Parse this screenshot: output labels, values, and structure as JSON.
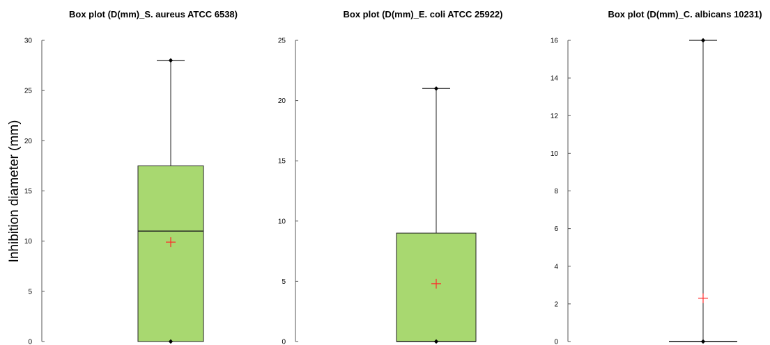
{
  "shared": {
    "ylabel": "Inhibition diameter (mm)",
    "colors": {
      "box_fill": "#a8d870",
      "box_edge": "#222222",
      "mean_marker": "#ff2a2a",
      "extreme_marker": "#000000",
      "axis": "#555555"
    }
  },
  "chart_data": [
    {
      "type": "box",
      "title": "Box plot (D(mm)_S. aureus ATCC 6538)",
      "ylabel": "Inhibition diameter (mm)",
      "ylim": [
        0,
        30
      ],
      "yticks": [
        "0",
        "5",
        "10",
        "15",
        "20",
        "25",
        "30"
      ],
      "stats": {
        "min": 0,
        "q1": 0,
        "median": 11,
        "q3": 17.5,
        "max": 28,
        "mean": 9.9
      }
    },
    {
      "type": "box",
      "title": "Box plot (D(mm)_E. coli ATCC 25922)",
      "ylim": [
        0,
        25
      ],
      "yticks": [
        "0",
        "5",
        "10",
        "15",
        "20",
        "25"
      ],
      "stats": {
        "min": 0,
        "q1": 0,
        "median": 0,
        "q3": 9,
        "max": 21,
        "mean": 4.8
      }
    },
    {
      "type": "box",
      "title": "Box plot (D(mm)_C. albicans 10231)",
      "ylim": [
        0,
        16
      ],
      "yticks": [
        "0",
        "2",
        "4",
        "6",
        "8",
        "10",
        "12",
        "14",
        "16"
      ],
      "stats": {
        "min": 0,
        "q1": 0,
        "median": 0,
        "q3": 0,
        "max": 16,
        "mean": 2.3
      }
    }
  ]
}
